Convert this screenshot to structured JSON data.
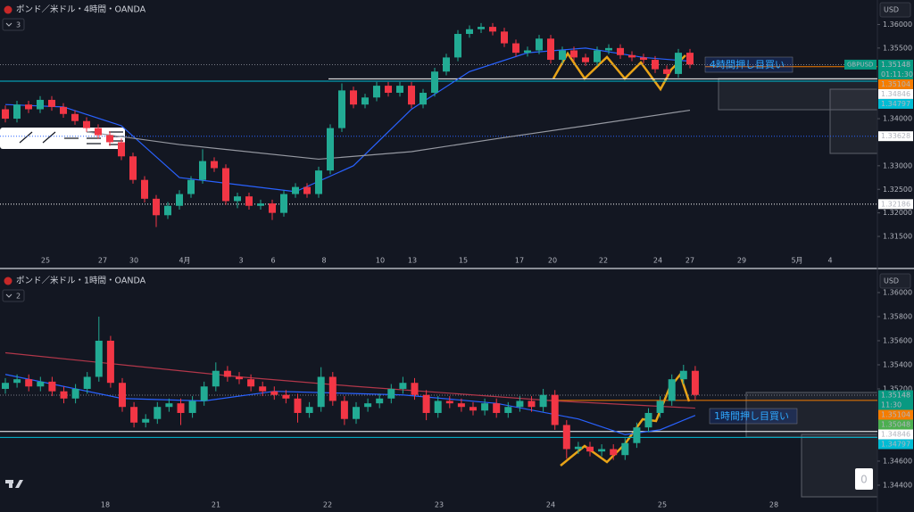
{
  "chart_data": [
    {
      "type": "candlestick",
      "title": "ポンド／米ドル・4時間・OANDA",
      "indicators": 3,
      "currency": "USD",
      "symbol": "GBPUSD",
      "annotation": "4時間押し目買い",
      "up_color": "#22ab94",
      "down_color": "#f23645",
      "ylim": [
        1.3116,
        1.3652
      ],
      "yticks": [
        {
          "value": 1.36,
          "label": "1.36000"
        },
        {
          "value": 1.355,
          "label": "1.35500"
        },
        {
          "value": 1.34,
          "label": "1.34000"
        },
        {
          "value": 1.33,
          "label": "1.33000"
        },
        {
          "value": 1.325,
          "label": "1.32500"
        },
        {
          "value": 1.32,
          "label": "1.32000"
        },
        {
          "value": 1.315,
          "label": "1.31500"
        }
      ],
      "categories": [
        "25",
        "27",
        "30",
        "4月",
        "3",
        "6",
        "8",
        "10",
        "13",
        "15",
        "17",
        "20",
        "22",
        "24",
        "27",
        "29",
        "5月",
        "4"
      ],
      "candles": [
        [
          1.342,
          1.3428,
          1.3392,
          1.34
        ],
        [
          1.34,
          1.3438,
          1.3392,
          1.343
        ],
        [
          1.343,
          1.3438,
          1.3412,
          1.342
        ],
        [
          1.342,
          1.3448,
          1.3412,
          1.344
        ],
        [
          1.344,
          1.3448,
          1.3417,
          1.3425
        ],
        [
          1.3425,
          1.3433,
          1.3402,
          1.341
        ],
        [
          1.341,
          1.3418,
          1.3387,
          1.3395
        ],
        [
          1.3395,
          1.3403,
          1.3372,
          1.338
        ],
        [
          1.338,
          1.3388,
          1.3357,
          1.3365
        ],
        [
          1.3365,
          1.3373,
          1.3342,
          1.335
        ],
        [
          1.335,
          1.3358,
          1.3312,
          1.332
        ],
        [
          1.332,
          1.3328,
          1.3262,
          1.327
        ],
        [
          1.327,
          1.3278,
          1.3222,
          1.323
        ],
        [
          1.323,
          1.3238,
          1.317,
          1.3195
        ],
        [
          1.3195,
          1.3223,
          1.3187,
          1.3215
        ],
        [
          1.3215,
          1.3248,
          1.3207,
          1.324
        ],
        [
          1.324,
          1.3278,
          1.3232,
          1.327
        ],
        [
          1.327,
          1.3335,
          1.3262,
          1.331
        ],
        [
          1.331,
          1.3318,
          1.3287,
          1.3295
        ],
        [
          1.3295,
          1.3303,
          1.3217,
          1.3225
        ],
        [
          1.3225,
          1.3243,
          1.321,
          1.3235
        ],
        [
          1.3235,
          1.3243,
          1.3207,
          1.3215
        ],
        [
          1.3215,
          1.3228,
          1.3207,
          1.322
        ],
        [
          1.322,
          1.3228,
          1.3185,
          1.32
        ],
        [
          1.32,
          1.3248,
          1.3192,
          1.324
        ],
        [
          1.324,
          1.3263,
          1.3232,
          1.3255
        ],
        [
          1.3255,
          1.3263,
          1.3232,
          1.324
        ],
        [
          1.324,
          1.3298,
          1.3232,
          1.329
        ],
        [
          1.329,
          1.3388,
          1.3282,
          1.338
        ],
        [
          1.338,
          1.3475,
          1.3372,
          1.346
        ],
        [
          1.346,
          1.3468,
          1.3422,
          1.343
        ],
        [
          1.343,
          1.3453,
          1.3422,
          1.3445
        ],
        [
          1.3445,
          1.3478,
          1.3437,
          1.347
        ],
        [
          1.347,
          1.3478,
          1.3447,
          1.3455
        ],
        [
          1.3455,
          1.3478,
          1.3447,
          1.347
        ],
        [
          1.347,
          1.3478,
          1.3422,
          1.343
        ],
        [
          1.343,
          1.3463,
          1.3422,
          1.3455
        ],
        [
          1.3455,
          1.3508,
          1.3447,
          1.35
        ],
        [
          1.35,
          1.3538,
          1.3492,
          1.353
        ],
        [
          1.353,
          1.3588,
          1.3522,
          1.358
        ],
        [
          1.358,
          1.3598,
          1.3572,
          1.359
        ],
        [
          1.359,
          1.3603,
          1.3582,
          1.3595
        ],
        [
          1.3595,
          1.3603,
          1.3577,
          1.3585
        ],
        [
          1.3585,
          1.3593,
          1.3552,
          1.356
        ],
        [
          1.356,
          1.3568,
          1.3532,
          1.354
        ],
        [
          1.354,
          1.3553,
          1.3532,
          1.3545
        ],
        [
          1.3545,
          1.3578,
          1.3537,
          1.357
        ],
        [
          1.357,
          1.3578,
          1.3517,
          1.3525
        ],
        [
          1.3525,
          1.3553,
          1.3517,
          1.3545
        ],
        [
          1.3545,
          1.3553,
          1.3522,
          1.353
        ],
        [
          1.353,
          1.3538,
          1.3512,
          1.352
        ],
        [
          1.352,
          1.3553,
          1.3512,
          1.3545
        ],
        [
          1.3545,
          1.3558,
          1.3537,
          1.355
        ],
        [
          1.355,
          1.3558,
          1.3527,
          1.3535
        ],
        [
          1.3535,
          1.3543,
          1.3522,
          1.353
        ],
        [
          1.353,
          1.3538,
          1.3517,
          1.3525
        ],
        [
          1.3525,
          1.3533,
          1.3497,
          1.3505
        ],
        [
          1.3505,
          1.3513,
          1.3487,
          1.3495
        ],
        [
          1.3495,
          1.3548,
          1.3487,
          1.354
        ],
        [
          1.354,
          1.3548,
          1.3507,
          1.3515
        ]
      ],
      "series": [
        {
          "color": "#2962ff",
          "x": [
            0,
            5,
            10,
            15,
            20,
            25,
            30,
            35,
            40,
            45,
            50,
            55,
            59
          ],
          "values": [
            1.343,
            1.3425,
            1.3385,
            1.3275,
            1.326,
            1.3245,
            1.33,
            1.342,
            1.35,
            1.354,
            1.355,
            1.353,
            1.3522
          ]
        },
        {
          "color": "#9598a1",
          "x": [
            7,
            15,
            27,
            35,
            43,
            50,
            59
          ],
          "values": [
            1.3372,
            1.3345,
            1.3314,
            1.333,
            1.336,
            1.3385,
            1.3418
          ]
        }
      ],
      "hlines": [
        {
          "value": 1.35148,
          "color": "#089981",
          "line": "#787b86",
          "style": "dotted",
          "countdown": "01:11:30"
        },
        {
          "value": 1.35104,
          "color": "#f57c00",
          "line": "#f57c00",
          "style": "solid"
        },
        {
          "value": 1.34846,
          "color": "#ffffff",
          "line": "#ffffff",
          "style": "solid"
        },
        {
          "value": 1.34797,
          "color": "#00bcd4",
          "line": "#00bcd4",
          "style": "solid"
        },
        {
          "value": 1.33628,
          "color": "#ffffff",
          "line": "#2962ff",
          "style": "dotted"
        },
        {
          "value": 1.32186,
          "color": "#ffffff",
          "line": "#ffffff",
          "style": "dotted"
        }
      ]
    },
    {
      "type": "candlestick",
      "title": "ポンド／米ドル・1時間・OANDA",
      "indicators": 2,
      "currency": "USD",
      "annotation": "1時間押し目買い",
      "badge": 0,
      "up_color": "#22ab94",
      "down_color": "#f23645",
      "ylim": [
        1.34296,
        1.36148
      ],
      "yticks": [
        {
          "value": 1.36,
          "label": "1.36000"
        },
        {
          "value": 1.358,
          "label": "1.35800"
        },
        {
          "value": 1.356,
          "label": "1.35600"
        },
        {
          "value": 1.354,
          "label": "1.35400"
        },
        {
          "value": 1.352,
          "label": "1.35200"
        },
        {
          "value": 1.346,
          "label": "1.34600"
        },
        {
          "value": 1.344,
          "label": "1.34400"
        }
      ],
      "categories": [
        "18",
        "21",
        "22",
        "23",
        "24",
        "25",
        "28"
      ],
      "candles": [
        [
          1.352,
          1.3529,
          1.3516,
          1.3525
        ],
        [
          1.3525,
          1.3532,
          1.3521,
          1.3528
        ],
        [
          1.3528,
          1.3532,
          1.3518,
          1.3522
        ],
        [
          1.3522,
          1.353,
          1.3518,
          1.3526
        ],
        [
          1.3526,
          1.353,
          1.3514,
          1.3518
        ],
        [
          1.3518,
          1.3522,
          1.3508,
          1.3512
        ],
        [
          1.3512,
          1.3524,
          1.3508,
          1.352
        ],
        [
          1.352,
          1.3534,
          1.3516,
          1.353
        ],
        [
          1.353,
          1.358,
          1.3526,
          1.356
        ],
        [
          1.356,
          1.3564,
          1.3521,
          1.3525
        ],
        [
          1.3525,
          1.3529,
          1.3501,
          1.3505
        ],
        [
          1.3505,
          1.3509,
          1.3488,
          1.3492
        ],
        [
          1.3492,
          1.3499,
          1.3488,
          1.3495
        ],
        [
          1.3495,
          1.3509,
          1.3491,
          1.3505
        ],
        [
          1.3505,
          1.3512,
          1.3501,
          1.3508
        ],
        [
          1.3508,
          1.3512,
          1.349,
          1.35
        ],
        [
          1.35,
          1.3514,
          1.3496,
          1.351
        ],
        [
          1.351,
          1.3526,
          1.3506,
          1.3522
        ],
        [
          1.3522,
          1.3542,
          1.3518,
          1.3535
        ],
        [
          1.3535,
          1.3539,
          1.3526,
          1.353
        ],
        [
          1.353,
          1.3534,
          1.3524,
          1.3528
        ],
        [
          1.3528,
          1.3532,
          1.3518,
          1.3522
        ],
        [
          1.3522,
          1.3526,
          1.3514,
          1.3518
        ],
        [
          1.3518,
          1.3522,
          1.3511,
          1.3515
        ],
        [
          1.3515,
          1.3519,
          1.3508,
          1.3512
        ],
        [
          1.3512,
          1.3516,
          1.3492,
          1.35
        ],
        [
          1.35,
          1.3509,
          1.3496,
          1.3505
        ],
        [
          1.3505,
          1.3538,
          1.3501,
          1.353
        ],
        [
          1.353,
          1.3534,
          1.3506,
          1.351
        ],
        [
          1.351,
          1.3514,
          1.349,
          1.3495
        ],
        [
          1.3495,
          1.3509,
          1.3491,
          1.3505
        ],
        [
          1.3505,
          1.3512,
          1.3501,
          1.3508
        ],
        [
          1.3508,
          1.3516,
          1.3504,
          1.3512
        ],
        [
          1.3512,
          1.3524,
          1.3508,
          1.352
        ],
        [
          1.352,
          1.353,
          1.3516,
          1.3525
        ],
        [
          1.3525,
          1.3529,
          1.3511,
          1.3515
        ],
        [
          1.3515,
          1.3519,
          1.3494,
          1.35
        ],
        [
          1.35,
          1.3514,
          1.3496,
          1.351
        ],
        [
          1.351,
          1.3514,
          1.3504,
          1.3508
        ],
        [
          1.3508,
          1.3512,
          1.3501,
          1.3505
        ],
        [
          1.3505,
          1.3509,
          1.3498,
          1.3502
        ],
        [
          1.3502,
          1.3512,
          1.3498,
          1.3508
        ],
        [
          1.3508,
          1.3512,
          1.3496,
          1.35
        ],
        [
          1.35,
          1.3509,
          1.3496,
          1.3505
        ],
        [
          1.3505,
          1.3514,
          1.3501,
          1.351
        ],
        [
          1.351,
          1.3514,
          1.3501,
          1.3505
        ],
        [
          1.3505,
          1.352,
          1.3501,
          1.3515
        ],
        [
          1.3515,
          1.3519,
          1.3486,
          1.349
        ],
        [
          1.349,
          1.3494,
          1.3462,
          1.347
        ],
        [
          1.347,
          1.3476,
          1.3466,
          1.3472
        ],
        [
          1.3472,
          1.3476,
          1.3464,
          1.3468
        ],
        [
          1.3468,
          1.3474,
          1.3464,
          1.347
        ],
        [
          1.347,
          1.3474,
          1.3461,
          1.3465
        ],
        [
          1.3465,
          1.3479,
          1.3461,
          1.3475
        ],
        [
          1.3475,
          1.3492,
          1.3471,
          1.3488
        ],
        [
          1.3488,
          1.3504,
          1.3484,
          1.35
        ],
        [
          1.35,
          1.3514,
          1.3496,
          1.351
        ],
        [
          1.351,
          1.3532,
          1.3506,
          1.3528
        ],
        [
          1.3528,
          1.354,
          1.3524,
          1.3535
        ],
        [
          1.3535,
          1.3539,
          1.3511,
          1.3515
        ]
      ],
      "series": [
        {
          "color": "#2962ff",
          "x": [
            0,
            10,
            17,
            23,
            34,
            42,
            49,
            53,
            56,
            59
          ],
          "values": [
            1.3532,
            1.3512,
            1.351,
            1.3518,
            1.3515,
            1.3508,
            1.3495,
            1.3482,
            1.3486,
            1.3498
          ]
        },
        {
          "color": "#b2374a",
          "x": [
            0,
            10,
            20,
            30,
            40,
            47,
            59
          ],
          "values": [
            1.355,
            1.354,
            1.353,
            1.3522,
            1.3515,
            1.351,
            1.3504
          ]
        }
      ],
      "hlines": [
        {
          "value": 1.35148,
          "color": "#089981",
          "line": "#787b86",
          "style": "dotted",
          "countdown": "11:30"
        },
        {
          "value": 1.35104,
          "color": "#f57c00",
          "line": "#f57c00",
          "style": "solid"
        },
        {
          "value": 1.35048,
          "color": "#4caf50",
          "line": "#4caf50",
          "style": "none"
        },
        {
          "value": 1.34846,
          "color": "#ffffff",
          "line": "#ffffff",
          "style": "solid"
        },
        {
          "value": 1.34797,
          "color": "#00bcd4",
          "line": "#00bcd4",
          "style": "solid"
        }
      ]
    }
  ]
}
